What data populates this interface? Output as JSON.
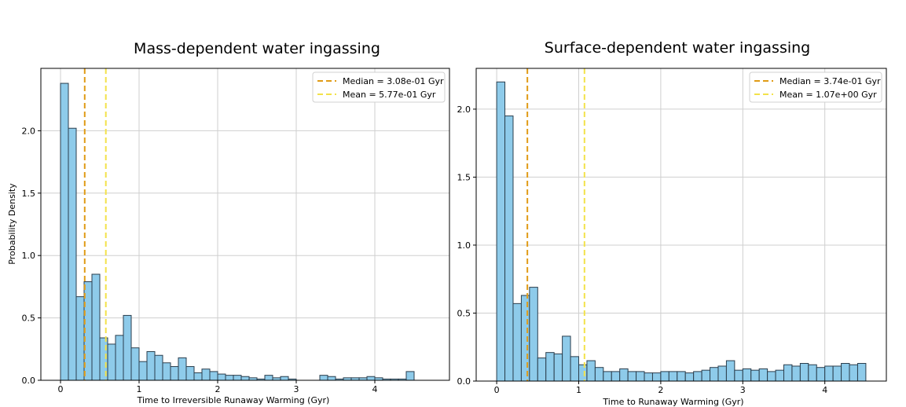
{
  "chart_data": [
    {
      "type": "bar",
      "title": "Mass-dependent water ingassing",
      "xlabel": "Time to Irreversible Runaway Warming (Gyr)",
      "ylabel": "Probability Density",
      "xlim": [
        -0.25,
        4.95
      ],
      "ylim": [
        0,
        2.5
      ],
      "xticks": [
        0,
        1,
        2,
        3,
        4
      ],
      "xtick_labels": [
        "0",
        "1",
        "2",
        "3",
        "4"
      ],
      "yticks": [
        0,
        0.5,
        1.0,
        1.5,
        2.0
      ],
      "ytick_labels": [
        "0.0",
        "0.5",
        "1.0",
        "1.5",
        "2.0"
      ],
      "grid": true,
      "bin_start": 0.0,
      "bin_width": 0.1,
      "values": [
        2.38,
        2.02,
        0.67,
        0.79,
        0.85,
        0.34,
        0.29,
        0.36,
        0.52,
        0.26,
        0.15,
        0.23,
        0.2,
        0.14,
        0.11,
        0.18,
        0.11,
        0.06,
        0.09,
        0.07,
        0.05,
        0.04,
        0.04,
        0.03,
        0.02,
        0.01,
        0.04,
        0.02,
        0.03,
        0.01,
        0.0,
        0.0,
        0.0,
        0.04,
        0.03,
        0.01,
        0.02,
        0.02,
        0.02,
        0.03,
        0.02,
        0.01,
        0.01,
        0.01,
        0.07
      ],
      "bar_color": "#8ecbea",
      "edge_color": "#2b3e4d",
      "lines": [
        {
          "label": "Median = 3.08e-01 Gyr",
          "x": 0.308,
          "color": "#e09b16"
        },
        {
          "label": "Mean = 5.77e-01 Gyr",
          "x": 0.577,
          "color": "#f3e24a"
        }
      ],
      "legend_position": "top-right"
    },
    {
      "type": "bar",
      "title": "Surface-dependent water ingassing",
      "xlabel": "Time to Runaway Warming (Gyr)",
      "ylabel": "",
      "xlim": [
        -0.25,
        4.75
      ],
      "ylim": [
        0,
        2.3
      ],
      "xticks": [
        0,
        1,
        2,
        3,
        4
      ],
      "xtick_labels": [
        "0",
        "1",
        "2",
        "3",
        "4"
      ],
      "yticks": [
        0,
        0.5,
        1.0,
        1.5,
        2.0
      ],
      "ytick_labels": [
        "0.0",
        "0.5",
        "1.0",
        "1.5",
        "2.0"
      ],
      "grid": true,
      "bin_start": 0.0,
      "bin_width": 0.1,
      "values": [
        2.2,
        1.95,
        0.57,
        0.63,
        0.69,
        0.17,
        0.21,
        0.2,
        0.33,
        0.18,
        0.12,
        0.15,
        0.1,
        0.07,
        0.07,
        0.09,
        0.07,
        0.07,
        0.06,
        0.06,
        0.07,
        0.07,
        0.07,
        0.06,
        0.07,
        0.08,
        0.1,
        0.11,
        0.15,
        0.08,
        0.09,
        0.08,
        0.09,
        0.07,
        0.08,
        0.12,
        0.11,
        0.13,
        0.12,
        0.1,
        0.11,
        0.11,
        0.13,
        0.12,
        0.13
      ],
      "bar_color": "#8ecbea",
      "edge_color": "#2b3e4d",
      "lines": [
        {
          "label": "Median = 3.74e-01 Gyr",
          "x": 0.374,
          "color": "#e09b16"
        },
        {
          "label": "Mean = 1.07e+00 Gyr",
          "x": 1.07,
          "color": "#f3e24a"
        }
      ],
      "legend_position": "top-right"
    }
  ]
}
